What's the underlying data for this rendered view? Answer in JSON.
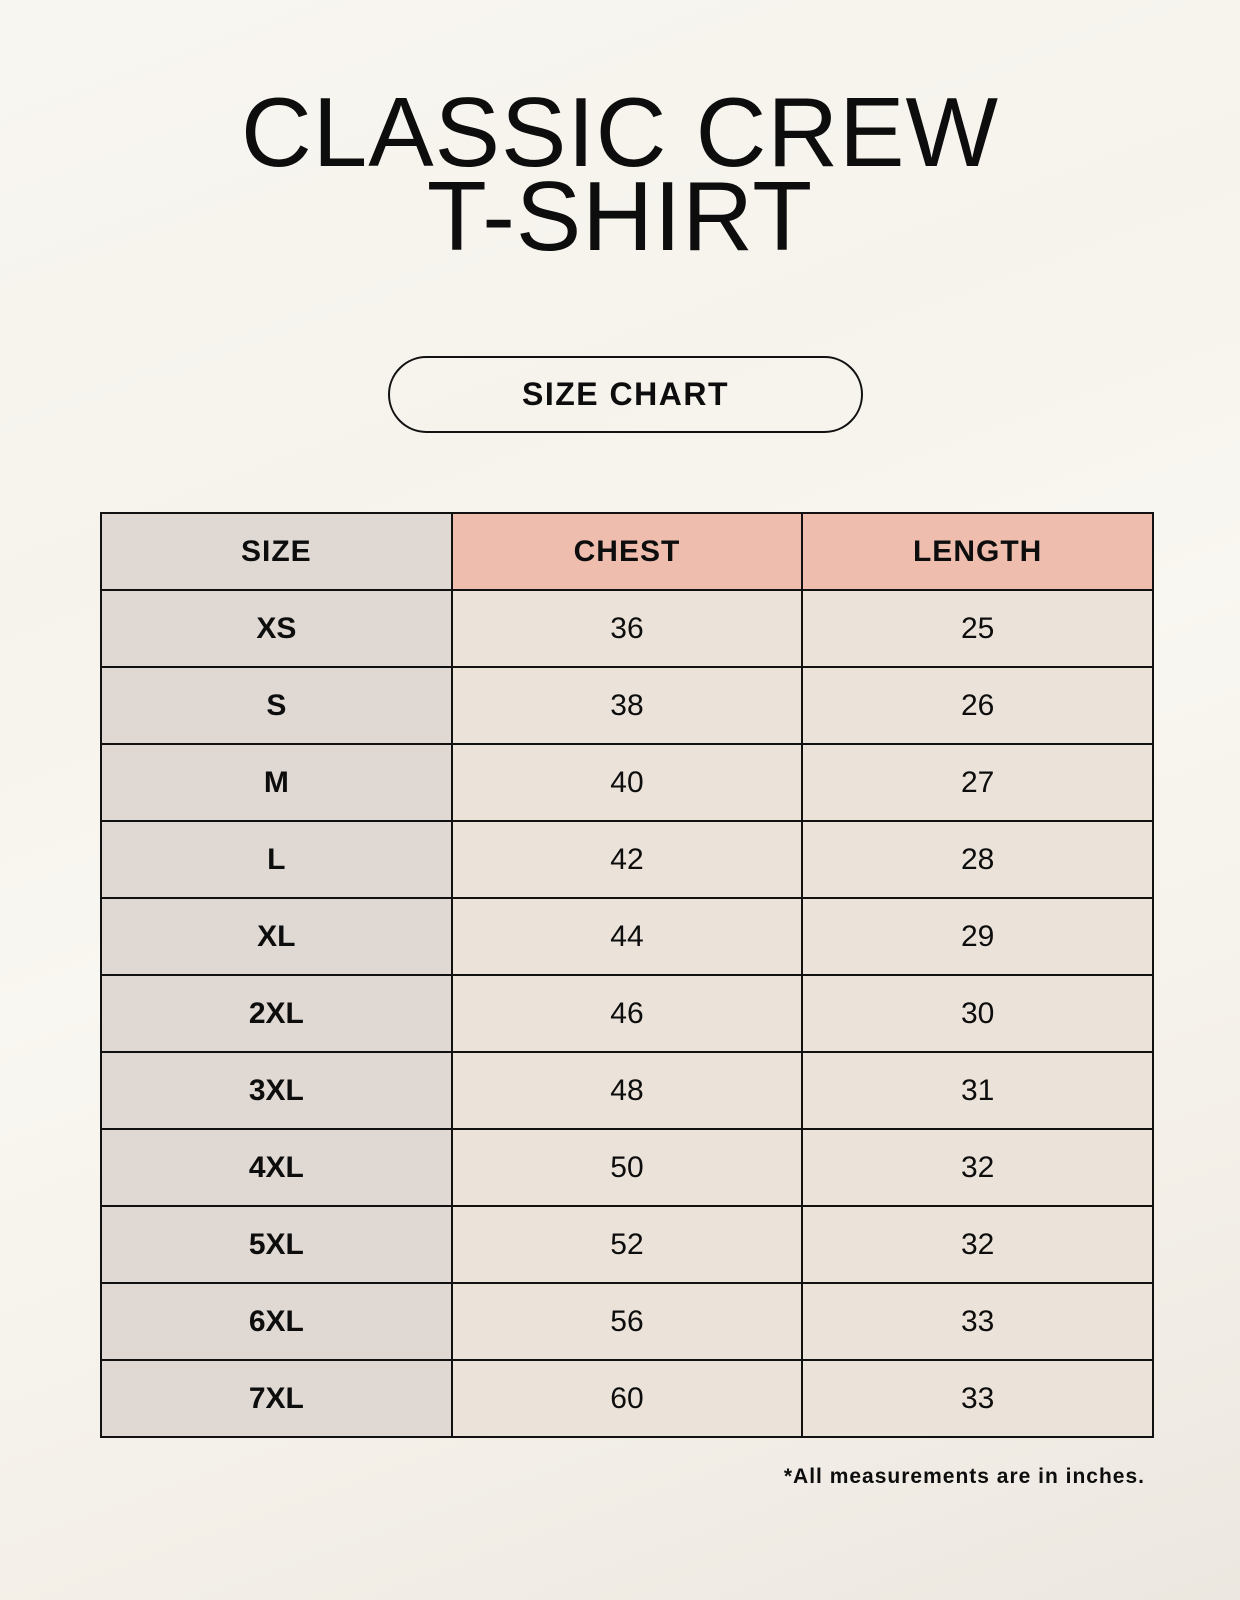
{
  "title": {
    "line1": "CLASSIC CREW",
    "line2": "T-SHIRT"
  },
  "badge": "SIZE CHART",
  "table": {
    "headers": [
      "SIZE",
      "CHEST",
      "LENGTH"
    ],
    "rows": [
      [
        "XS",
        "36",
        "25"
      ],
      [
        "S",
        "38",
        "26"
      ],
      [
        "M",
        "40",
        "27"
      ],
      [
        "L",
        "42",
        "28"
      ],
      [
        "XL",
        "44",
        "29"
      ],
      [
        "2XL",
        "46",
        "30"
      ],
      [
        "3XL",
        "48",
        "31"
      ],
      [
        "4XL",
        "50",
        "32"
      ],
      [
        "5XL",
        "52",
        "32"
      ],
      [
        "6XL",
        "56",
        "33"
      ],
      [
        "7XL",
        "60",
        "33"
      ]
    ]
  },
  "footnote": "*All measurements are in inches.",
  "colors": {
    "header_size_bg": "#e0d9d3",
    "header_measure_bg": "#eebdae",
    "value_bg": "#ebe3d9"
  }
}
